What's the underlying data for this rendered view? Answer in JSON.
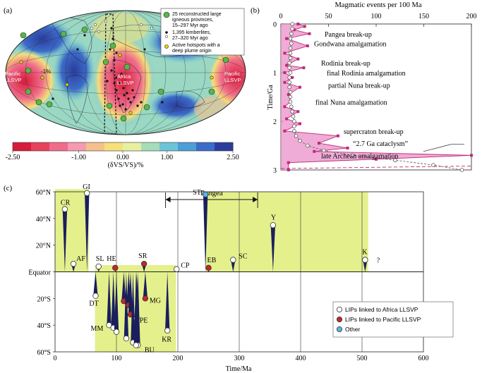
{
  "panel_a": {
    "label": "(a)",
    "legend": {
      "lips": "25 reconstructed large igneous provinces, 15–297 Myr ago",
      "lips_l1": "25 reconstructed large",
      "lips_l2": "igneous provinces,",
      "lips_l3": "15–297 Myr ago",
      "kimb_l1": "1,395 kimberlites,",
      "kimb_l2": "27–320 Myr ago",
      "hot_l1": "Active hotspots with a",
      "hot_l2": "deep plume origin"
    },
    "contour_label": "-1%",
    "pacific_left": [
      "Pacific",
      "LLSVP"
    ],
    "pacific_right": [
      "Pacific",
      "LLSVP"
    ],
    "africa": [
      "Africa",
      "LLSVP"
    ],
    "colorbar": {
      "ticks": [
        "-2.50",
        "-1.00",
        "0.00",
        "1.00",
        "2.50"
      ],
      "tick_values": [
        -2.5,
        -1.0,
        0.0,
        1.0,
        2.5
      ],
      "range": [
        -2.5,
        2.5
      ],
      "label": "(δVS/VS)/%",
      "colors": [
        "#d81b3a",
        "#e8425c",
        "#f06c8a",
        "#f59ab0",
        "#f5c08c",
        "#f5e07a",
        "#e6f0a0",
        "#a6dcb8",
        "#6cc4d8",
        "#4c9ed6",
        "#3c6cc8",
        "#2c3c9c"
      ]
    }
  },
  "panel_b": {
    "label": "(b)",
    "title": "Magmatic events per 100 Ma",
    "xlim": [
      0,
      200
    ],
    "x_ticks": [
      "0",
      "50",
      "100",
      "150",
      "200"
    ],
    "ylim": [
      0,
      3
    ],
    "y_ticks": [
      "0",
      "1",
      "2",
      "3"
    ],
    "ylabel": "Time/Ga",
    "events": [
      {
        "label": "Pangea break-up",
        "age": 0.2
      },
      {
        "label": "Gondwana amalgamation",
        "age": 0.4
      },
      {
        "label": "Rodinia break-up",
        "age": 0.8
      },
      {
        "label": "final Rodinia amalgamation",
        "age": 1.0
      },
      {
        "label": "partial Nuna break-up",
        "age": 1.25
      },
      {
        "label": "final Nuna amalgamation",
        "age": 1.6
      },
      {
        "label": "supercraton break-up",
        "age": 2.2
      },
      {
        "label": "“2.7 Ga cataclysm”",
        "age": 2.45
      },
      {
        "label": "late Archean amalgamation",
        "age": 2.7
      }
    ],
    "series_white": [
      [
        12,
        0
      ],
      [
        12,
        0.1
      ],
      [
        11,
        0.2
      ],
      [
        10,
        0.3
      ],
      [
        11,
        0.4
      ],
      [
        10,
        0.5
      ],
      [
        10,
        0.6
      ],
      [
        10,
        0.7
      ],
      [
        9,
        0.8
      ],
      [
        9,
        0.9
      ],
      [
        10,
        1.0
      ],
      [
        9,
        1.1
      ],
      [
        9,
        1.2
      ],
      [
        9,
        1.3
      ],
      [
        10,
        1.4
      ],
      [
        10,
        1.5
      ],
      [
        10,
        1.6
      ],
      [
        11,
        1.7
      ],
      [
        12,
        1.8
      ],
      [
        13,
        1.9
      ],
      [
        14,
        2.0
      ],
      [
        14,
        2.1
      ],
      [
        14,
        2.2
      ],
      [
        16,
        2.3
      ],
      [
        20,
        2.4
      ],
      [
        28,
        2.5
      ],
      [
        45,
        2.6
      ],
      [
        75,
        2.7
      ],
      [
        120,
        2.8
      ],
      [
        160,
        2.9
      ],
      [
        190,
        3.0
      ]
    ],
    "series_pink": [
      [
        18,
        0.0
      ],
      [
        25,
        0.05
      ],
      [
        14,
        0.12
      ],
      [
        30,
        0.2
      ],
      [
        6,
        0.3
      ],
      [
        28,
        0.45
      ],
      [
        4,
        0.6
      ],
      [
        18,
        0.72
      ],
      [
        6,
        0.85
      ],
      [
        24,
        0.9
      ],
      [
        4,
        1.0
      ],
      [
        12,
        1.1
      ],
      [
        4,
        1.2
      ],
      [
        20,
        1.3
      ],
      [
        8,
        1.45
      ],
      [
        10,
        1.6
      ],
      [
        4,
        1.7
      ],
      [
        18,
        1.8
      ],
      [
        6,
        1.95
      ],
      [
        20,
        2.05
      ],
      [
        4,
        2.2
      ],
      [
        60,
        2.3
      ],
      [
        40,
        2.45
      ],
      [
        70,
        2.55
      ],
      [
        35,
        2.62
      ],
      [
        200,
        2.7
      ],
      [
        100,
        2.78
      ],
      [
        8,
        2.85
      ],
      [
        8,
        3.0
      ]
    ]
  },
  "panel_c": {
    "label": "(c)",
    "xlim": [
      0,
      600
    ],
    "x_ticks": [
      "0",
      "100",
      "200",
      "300",
      "400",
      "500",
      "600"
    ],
    "xlabel": "Time/Ma",
    "ylim": [
      -60,
      60
    ],
    "y_ticks": [
      "60°N",
      "40°N",
      "20°N",
      "Equator",
      "20°S",
      "40°S",
      "60°S"
    ],
    "pangea": "Pangea",
    "pangea_range": [
      180,
      330
    ],
    "yellow_zones": [
      {
        "t0": 0,
        "t1": 55,
        "lat0": 0,
        "lat1": 62
      },
      {
        "t0": 65,
        "t1": 197,
        "lat0": -60,
        "lat1": 5
      },
      {
        "t0": 245,
        "t1": 510,
        "lat0": 0,
        "lat1": 60
      }
    ],
    "lips": [
      {
        "name": "CR",
        "age": 16,
        "lat": 47,
        "type": "africa"
      },
      {
        "name": "GI",
        "age": 52,
        "lat": 59,
        "type": "africa"
      },
      {
        "name": "AF",
        "age": 30,
        "lat": 6,
        "type": "africa"
      },
      {
        "name": "SL",
        "age": 71,
        "lat": 4,
        "type": "africa"
      },
      {
        "name": "HE",
        "age": 98,
        "lat": 3,
        "type": "pacific"
      },
      {
        "name": "SR",
        "age": 145,
        "lat": 6,
        "type": "pacific"
      },
      {
        "name": "CP",
        "age": 198,
        "lat": 2,
        "type": "africa"
      },
      {
        "name": "EB",
        "age": 250,
        "lat": 3,
        "type": "pacific"
      },
      {
        "name": "ST",
        "age": 245,
        "lat": 58,
        "type": "other"
      },
      {
        "name": "SC",
        "age": 290,
        "lat": 9,
        "type": "africa"
      },
      {
        "name": "Y",
        "age": 355,
        "lat": 35,
        "type": "africa"
      },
      {
        "name": "K",
        "age": 505,
        "lat": 9,
        "type": "africa"
      },
      {
        "name": "DT",
        "age": 66,
        "lat": -18,
        "type": "africa"
      },
      {
        "name": "MM",
        "age": 88,
        "lat": -40,
        "type": "africa"
      },
      {
        "name": "",
        "age": 95,
        "lat": -42,
        "type": "africa"
      },
      {
        "name": "",
        "age": 100,
        "lat": -45,
        "type": "africa"
      },
      {
        "name": "",
        "age": 112,
        "lat": -22,
        "type": "pacific"
      },
      {
        "name": "",
        "age": 116,
        "lat": -50,
        "type": "africa"
      },
      {
        "name": "",
        "age": 120,
        "lat": -25,
        "type": "pacific"
      },
      {
        "name": "",
        "age": 123,
        "lat": -32,
        "type": "pacific"
      },
      {
        "name": "",
        "age": 127,
        "lat": -53,
        "type": "africa"
      },
      {
        "name": "PE",
        "age": 133,
        "lat": -35,
        "type": "africa"
      },
      {
        "name": "",
        "age": 135,
        "lat": -55,
        "type": "africa"
      },
      {
        "name": "MG",
        "age": 147,
        "lat": -20,
        "type": "pacific"
      },
      {
        "name": "BU",
        "age": 132,
        "lat": -55,
        "type": "africa"
      },
      {
        "name": "KR",
        "age": 183,
        "lat": -44,
        "type": "africa"
      }
    ],
    "question": "?",
    "legend": {
      "africa": "LIPs linked to Africa LLSVP",
      "pacific": "LIPs linked to Pacific LLSVP",
      "other": "Other"
    },
    "colors": {
      "africa": "#ffffff",
      "pacific": "#c0282c",
      "other": "#5ab4e6",
      "spike": "#1a1f5c",
      "zone": "#e4f08c"
    }
  }
}
